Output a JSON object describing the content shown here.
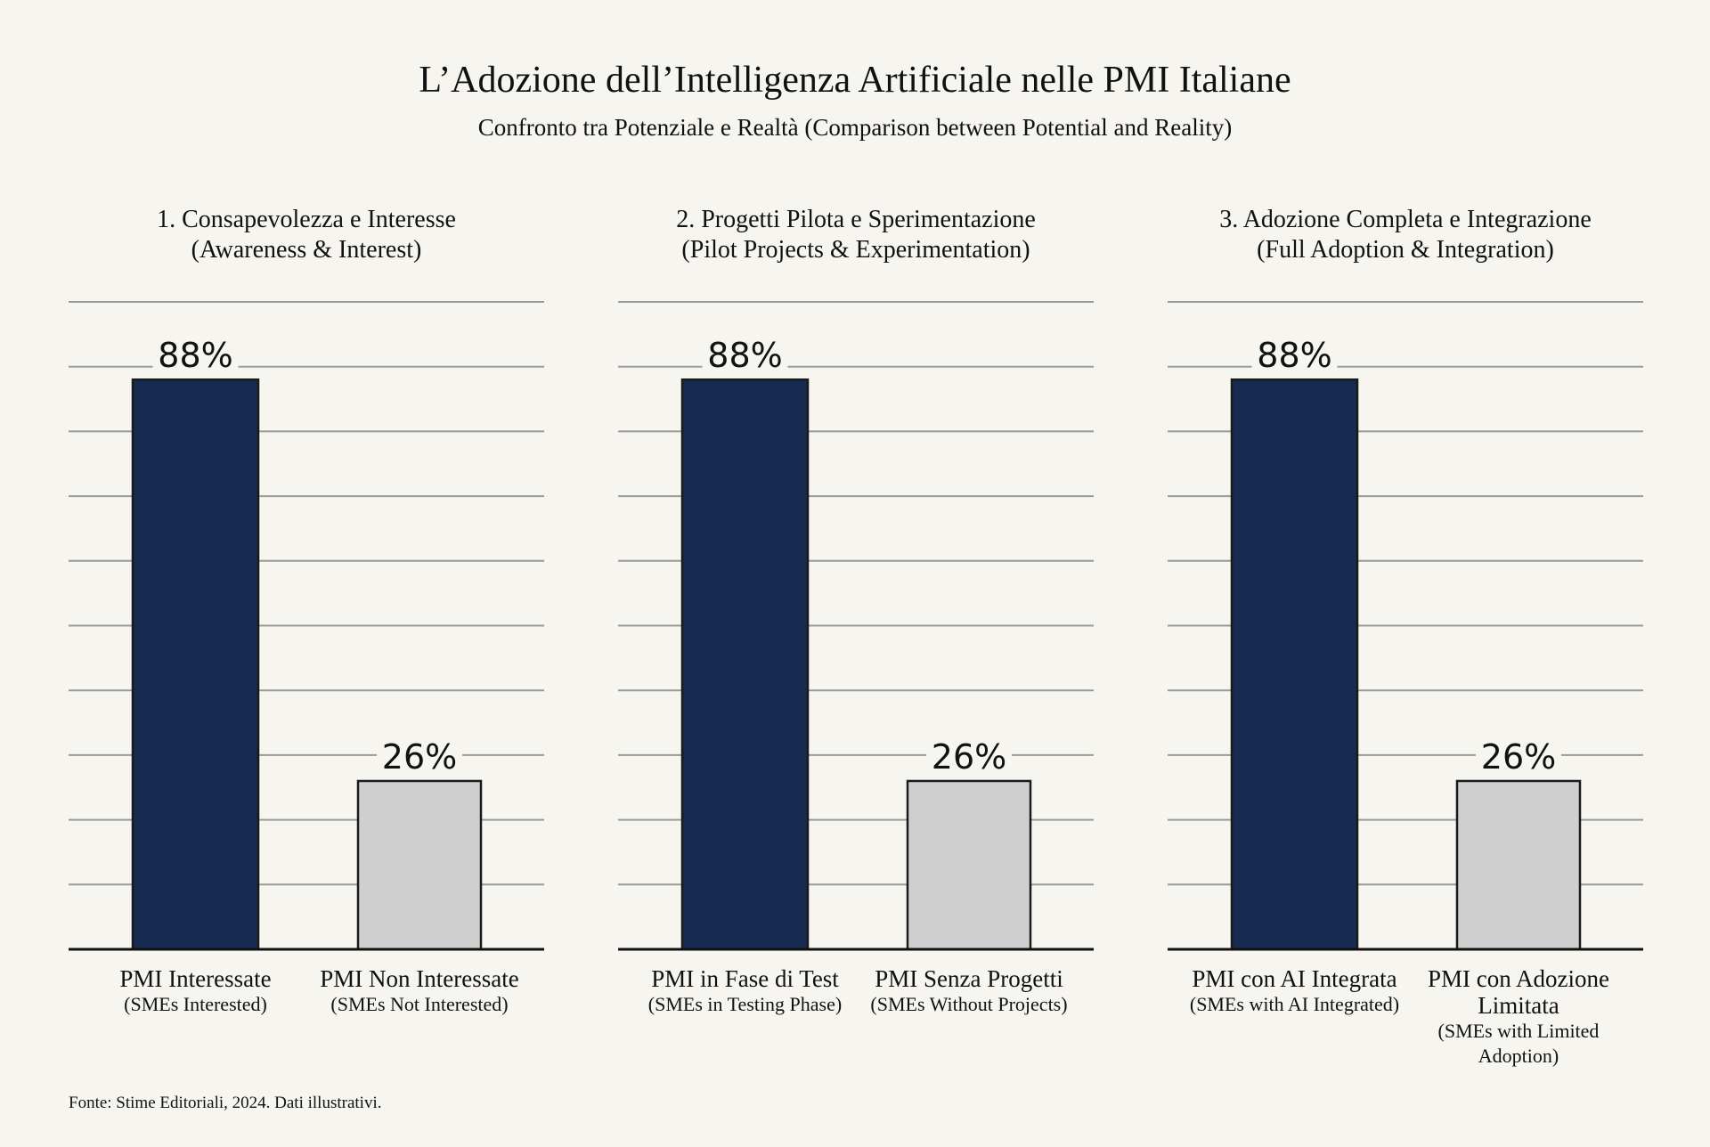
{
  "title": "L’Adozione dell’Intelligenza Artificiale nelle PMI Italiane",
  "subtitle": "Confronto tra Potenziale e Realtà (Comparison between Potential and Reality)",
  "source": "Fonte: Stime Editoriali, 2024. Dati illustrativi.",
  "colors": {
    "primary": "#172a4f",
    "secondary": "#cfcfcf",
    "grid": "#9a9a9a",
    "background": "#f6f5f0"
  },
  "chart_data": [
    {
      "type": "bar",
      "title": "1. Consapevolezza e Interesse",
      "title_en": "(Awareness & Interest)",
      "categories": [
        "PMI Interessate",
        "PMI Non Interessate"
      ],
      "categories_en": [
        "(SMEs Interested)",
        "(SMEs Not Interested)"
      ],
      "values": [
        88,
        26
      ],
      "labels": [
        "88%",
        "26%"
      ],
      "ylim": [
        0,
        100
      ],
      "grid": true,
      "grid_step": 10
    },
    {
      "type": "bar",
      "title": "2. Progetti Pilota e Sperimentazione",
      "title_en": "(Pilot Projects & Experimentation)",
      "categories": [
        "PMI in Fase di Test",
        "PMI Senza Progetti"
      ],
      "categories_en": [
        "(SMEs in Testing Phase)",
        "(SMEs Without Projects)"
      ],
      "values": [
        88,
        26
      ],
      "labels": [
        "88%",
        "26%"
      ],
      "ylim": [
        0,
        100
      ],
      "grid": true,
      "grid_step": 10
    },
    {
      "type": "bar",
      "title": "3. Adozione Completa e Integrazione",
      "title_en": "(Full Adoption & Integration)",
      "categories": [
        "PMI con AI Integrata",
        "PMI con Adozione Limitata"
      ],
      "categories_en": [
        "(SMEs with AI Integrated)",
        "(SMEs with Limited Adoption)"
      ],
      "values": [
        88,
        26
      ],
      "labels": [
        "88%",
        "26%"
      ],
      "ylim": [
        0,
        100
      ],
      "grid": true,
      "grid_step": 10
    }
  ]
}
